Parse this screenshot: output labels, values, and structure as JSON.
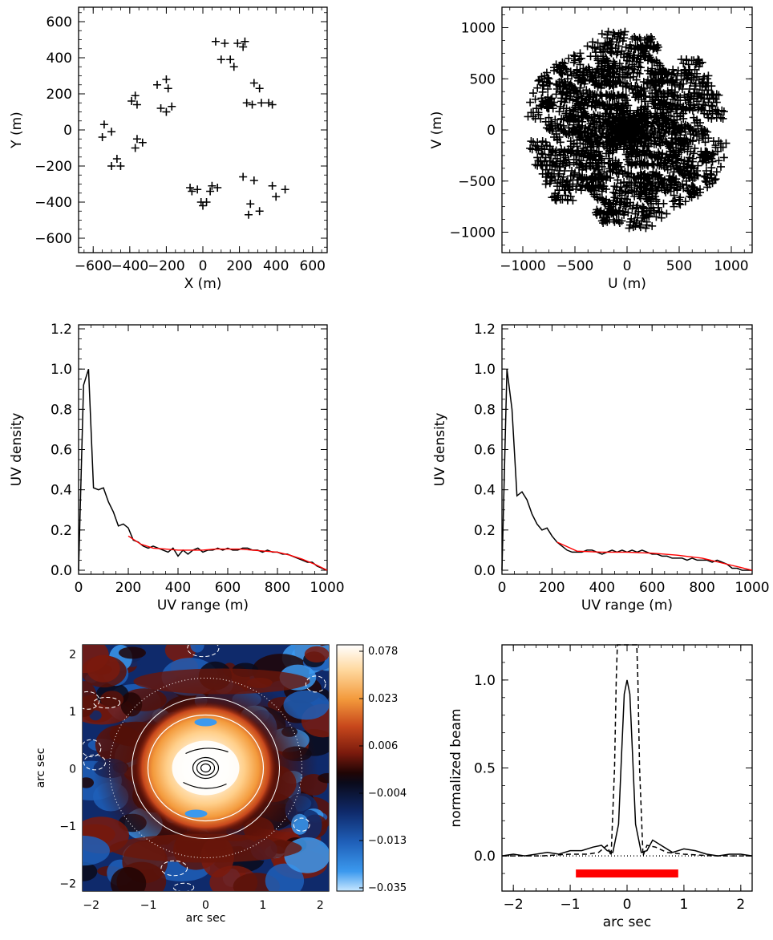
{
  "chart_data": [
    {
      "type": "scatter",
      "id": "antenna-layout",
      "marker": "plus",
      "xlabel": "X (m)",
      "ylabel": "Y (m)",
      "xlim": [
        -680,
        680
      ],
      "ylim": [
        -680,
        680
      ],
      "xticks": [
        -600,
        -400,
        -200,
        0,
        200,
        400,
        600
      ],
      "xtick_labels": [
        "−600",
        "−400",
        "−200",
        "0",
        "200",
        "400",
        "600"
      ],
      "yticks": [
        -600,
        -400,
        -200,
        0,
        200,
        400,
        600
      ],
      "ytick_labels": [
        "−600",
        "−400",
        "−200",
        "0",
        "200",
        "400",
        "600"
      ],
      "points": [
        [
          70,
          490
        ],
        [
          120,
          480
        ],
        [
          190,
          480
        ],
        [
          230,
          490
        ],
        [
          220,
          460
        ],
        [
          100,
          390
        ],
        [
          150,
          390
        ],
        [
          170,
          350
        ],
        [
          280,
          260
        ],
        [
          310,
          230
        ],
        [
          360,
          150
        ],
        [
          240,
          150
        ],
        [
          270,
          140
        ],
        [
          380,
          140
        ],
        [
          320,
          150
        ],
        [
          -200,
          280
        ],
        [
          -250,
          250
        ],
        [
          -190,
          230
        ],
        [
          -230,
          120
        ],
        [
          -200,
          100
        ],
        [
          -170,
          130
        ],
        [
          -390,
          160
        ],
        [
          -370,
          190
        ],
        [
          -360,
          140
        ],
        [
          -540,
          30
        ],
        [
          -500,
          -10
        ],
        [
          -550,
          -40
        ],
        [
          -360,
          -50
        ],
        [
          -330,
          -70
        ],
        [
          -370,
          -100
        ],
        [
          -470,
          -160
        ],
        [
          -450,
          -200
        ],
        [
          -500,
          -200
        ],
        [
          -70,
          -320
        ],
        [
          -30,
          -330
        ],
        [
          -60,
          -340
        ],
        [
          50,
          -310
        ],
        [
          80,
          -320
        ],
        [
          40,
          -340
        ],
        [
          -10,
          -400
        ],
        [
          20,
          -400
        ],
        [
          0,
          -420
        ],
        [
          220,
          -260
        ],
        [
          280,
          -280
        ],
        [
          260,
          -410
        ],
        [
          310,
          -450
        ],
        [
          250,
          -470
        ],
        [
          380,
          -310
        ],
        [
          400,
          -370
        ],
        [
          450,
          -330
        ]
      ]
    },
    {
      "type": "scatter",
      "id": "uv-coverage",
      "marker": "plus",
      "xlabel": "U (m)",
      "ylabel": "V (m)",
      "xlim": [
        -1200,
        1200
      ],
      "ylim": [
        -1200,
        1200
      ],
      "xticks": [
        -1000,
        -500,
        0,
        500,
        1000
      ],
      "xtick_labels": [
        "−1000",
        "−500",
        "0",
        "500",
        "1000"
      ],
      "yticks": [
        -1000,
        -500,
        0,
        500,
        1000
      ],
      "ytick_labels": [
        "−1000",
        "−500",
        "0",
        "500",
        "1000"
      ],
      "n_points": 1225,
      "max_radius": 980
    },
    {
      "type": "line",
      "id": "uv-density-1",
      "xlabel": "UV range (m)",
      "ylabel": "UV density",
      "xlim": [
        0,
        1000
      ],
      "ylim": [
        -0.02,
        1.22
      ],
      "xticks": [
        0,
        200,
        400,
        600,
        800,
        1000
      ],
      "xtick_labels": [
        "0",
        "200",
        "400",
        "600",
        "800",
        "1000"
      ],
      "yticks": [
        0.0,
        0.2,
        0.4,
        0.6,
        0.8,
        1.0,
        1.2
      ],
      "ytick_labels": [
        "0.0",
        "0.2",
        "0.4",
        "0.6",
        "0.8",
        "1.0",
        "1.2"
      ],
      "series": [
        {
          "color": "#000000",
          "x": [
            0,
            20,
            40,
            60,
            80,
            100,
            120,
            140,
            160,
            180,
            200,
            220,
            240,
            260,
            280,
            300,
            320,
            340,
            360,
            380,
            400,
            420,
            440,
            460,
            480,
            500,
            520,
            540,
            560,
            580,
            600,
            620,
            640,
            660,
            680,
            700,
            720,
            740,
            760,
            780,
            800,
            820,
            840,
            860,
            880,
            900,
            920,
            940,
            960,
            980,
            1000
          ],
          "y": [
            0.0,
            0.92,
            1.0,
            0.41,
            0.4,
            0.41,
            0.34,
            0.29,
            0.22,
            0.23,
            0.21,
            0.15,
            0.14,
            0.12,
            0.11,
            0.12,
            0.11,
            0.1,
            0.09,
            0.11,
            0.07,
            0.1,
            0.08,
            0.1,
            0.11,
            0.09,
            0.1,
            0.1,
            0.11,
            0.1,
            0.11,
            0.1,
            0.1,
            0.11,
            0.11,
            0.1,
            0.1,
            0.09,
            0.1,
            0.09,
            0.09,
            0.08,
            0.08,
            0.07,
            0.06,
            0.05,
            0.04,
            0.04,
            0.02,
            0.01,
            0.0
          ]
        },
        {
          "color": "#ff0000",
          "x": [
            200,
            250,
            300,
            350,
            400,
            450,
            500,
            550,
            600,
            650,
            700,
            750,
            800,
            850,
            900,
            950,
            1000
          ],
          "y": [
            0.17,
            0.13,
            0.11,
            0.105,
            0.1,
            0.1,
            0.1,
            0.105,
            0.105,
            0.105,
            0.1,
            0.095,
            0.09,
            0.075,
            0.055,
            0.03,
            0.0
          ]
        }
      ]
    },
    {
      "type": "line",
      "id": "uv-density-2",
      "xlabel": "UV range (m)",
      "ylabel": "UV density",
      "xlim": [
        0,
        1000
      ],
      "ylim": [
        -0.02,
        1.22
      ],
      "xticks": [
        0,
        200,
        400,
        600,
        800,
        1000
      ],
      "xtick_labels": [
        "0",
        "200",
        "400",
        "600",
        "800",
        "1000"
      ],
      "yticks": [
        0.0,
        0.2,
        0.4,
        0.6,
        0.8,
        1.0,
        1.2
      ],
      "ytick_labels": [
        "0.0",
        "0.2",
        "0.4",
        "0.6",
        "0.8",
        "1.0",
        "1.2"
      ],
      "series": [
        {
          "color": "#000000",
          "x": [
            0,
            20,
            40,
            60,
            80,
            100,
            120,
            140,
            160,
            180,
            200,
            220,
            240,
            260,
            280,
            300,
            320,
            340,
            360,
            380,
            400,
            420,
            440,
            460,
            480,
            500,
            520,
            540,
            560,
            580,
            600,
            620,
            640,
            660,
            680,
            700,
            720,
            740,
            760,
            780,
            800,
            820,
            840,
            860,
            880,
            900,
            920,
            940,
            960,
            980,
            1000
          ],
          "y": [
            0.0,
            1.0,
            0.8,
            0.37,
            0.39,
            0.35,
            0.28,
            0.23,
            0.2,
            0.21,
            0.17,
            0.14,
            0.12,
            0.1,
            0.09,
            0.09,
            0.09,
            0.1,
            0.1,
            0.09,
            0.08,
            0.09,
            0.1,
            0.09,
            0.1,
            0.09,
            0.1,
            0.09,
            0.1,
            0.09,
            0.08,
            0.08,
            0.07,
            0.07,
            0.06,
            0.06,
            0.06,
            0.05,
            0.06,
            0.05,
            0.05,
            0.05,
            0.04,
            0.05,
            0.04,
            0.03,
            0.01,
            0.01,
            0.0,
            0.0,
            0.0
          ]
        },
        {
          "color": "#ff0000",
          "x": [
            220,
            300,
            400,
            500,
            600,
            700,
            800,
            900,
            950,
            1000
          ],
          "y": [
            0.14,
            0.095,
            0.09,
            0.09,
            0.085,
            0.075,
            0.06,
            0.03,
            0.015,
            0.0
          ]
        }
      ]
    },
    {
      "type": "heatmap",
      "id": "dirty-beam-map",
      "xlabel": "arc sec",
      "ylabel": "arc sec",
      "xlim": [
        -2.15,
        2.15
      ],
      "ylim": [
        -2.15,
        2.15
      ],
      "xticks": [
        -2,
        -1,
        0,
        1,
        2
      ],
      "xtick_labels": [
        "−2",
        "−1",
        "0",
        "1",
        "2"
      ],
      "yticks": [
        -2,
        -1,
        0,
        1,
        2
      ],
      "ytick_labels": [
        "−2",
        "−1",
        "0",
        "1",
        "2"
      ],
      "colorbar": {
        "tick_labels": [
          "0.078",
          "0.023",
          "0.006",
          "−0.004",
          "−0.013",
          "−0.035"
        ],
        "colors": [
          "#ffffff",
          "#ffd9a0",
          "#f39a3c",
          "#c8481c",
          "#7a1a0d",
          "#200505",
          "#0a0a1a",
          "#0f2a6b",
          "#1f5fb8",
          "#3b99ee",
          "#c7e7ff"
        ]
      }
    },
    {
      "type": "line",
      "id": "beam-profile",
      "xlabel": "arc sec",
      "ylabel": "normalized beam",
      "xlim": [
        -2.2,
        2.2
      ],
      "ylim": [
        -0.2,
        1.2
      ],
      "xticks": [
        -2,
        -1,
        0,
        1,
        2
      ],
      "xtick_labels": [
        "−2",
        "−1",
        "0",
        "1",
        "2"
      ],
      "yticks": [
        0.0,
        0.5,
        1.0
      ],
      "ytick_labels": [
        "0.0",
        "0.5",
        "1.0"
      ],
      "series": [
        {
          "style": "solid",
          "x": [
            -2.2,
            -2.0,
            -1.8,
            -1.6,
            -1.4,
            -1.2,
            -1.0,
            -0.8,
            -0.6,
            -0.45,
            -0.35,
            -0.25,
            -0.15,
            -0.1,
            -0.05,
            0,
            0.05,
            0.1,
            0.15,
            0.25,
            0.35,
            0.45,
            0.6,
            0.8,
            1.0,
            1.2,
            1.4,
            1.6,
            1.8,
            2.0,
            2.2
          ],
          "y": [
            0.0,
            0.01,
            0.0,
            0.01,
            0.02,
            0.01,
            0.03,
            0.03,
            0.05,
            0.06,
            0.03,
            0.02,
            0.18,
            0.55,
            0.92,
            1.0,
            0.92,
            0.55,
            0.18,
            0.02,
            0.03,
            0.09,
            0.06,
            0.02,
            0.04,
            0.03,
            0.01,
            0.0,
            0.01,
            0.01,
            0.0
          ]
        },
        {
          "style": "dashed",
          "x": [
            -2.2,
            -1.5,
            -1.0,
            -0.7,
            -0.5,
            -0.35,
            -0.28,
            -0.22,
            -0.19,
            -0.17,
            0.17,
            0.19,
            0.22,
            0.28,
            0.35,
            0.5,
            0.7,
            1.0,
            1.5,
            2.2
          ],
          "y": [
            0.0,
            0.0,
            0.01,
            0.01,
            0.02,
            0.06,
            0.0,
            0.5,
            1.0,
            1.2,
            1.2,
            1.0,
            0.5,
            0.0,
            0.06,
            0.05,
            0.02,
            0.01,
            0.0,
            0.0
          ]
        },
        {
          "style": "dotted",
          "x": [
            -2.2,
            2.2
          ],
          "y": [
            0.0,
            0.0
          ]
        }
      ],
      "bar": {
        "x": [
          -0.9,
          0.9
        ],
        "y": -0.1,
        "color": "#ff0000"
      }
    }
  ]
}
